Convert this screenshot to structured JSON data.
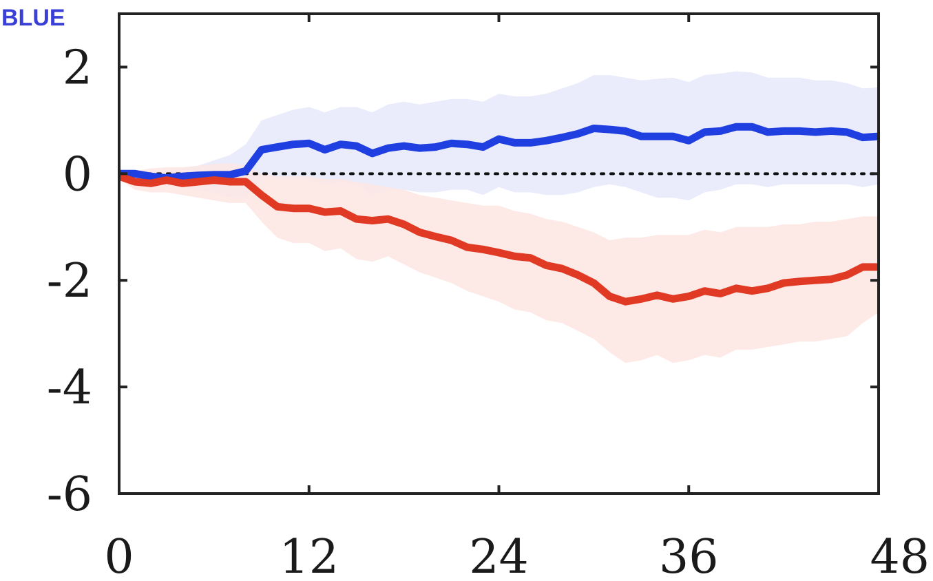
{
  "chart_data": {
    "type": "line",
    "title": "",
    "panel_label": "BLUE",
    "xlabel": "",
    "ylabel": "",
    "xlim": [
      0,
      48
    ],
    "ylim": [
      -6,
      3
    ],
    "xticks": [
      0,
      12,
      24,
      36,
      48
    ],
    "xtick_labels": [
      "0",
      "12",
      "24",
      "36",
      "48"
    ],
    "yticks": [
      2,
      0,
      -2,
      -4,
      -6
    ],
    "ytick_labels": [
      "2",
      "0",
      "-2",
      "-4",
      "-6"
    ],
    "reference_line": {
      "y": 0,
      "style": "dotted",
      "color": "#111111"
    },
    "x": [
      0,
      1,
      2,
      3,
      4,
      5,
      6,
      7,
      8,
      9,
      10,
      11,
      12,
      13,
      14,
      15,
      16,
      17,
      18,
      19,
      20,
      21,
      22,
      23,
      24,
      25,
      26,
      27,
      28,
      29,
      30,
      31,
      32,
      33,
      34,
      35,
      36,
      37,
      38,
      39,
      40,
      41,
      42,
      43,
      44,
      45,
      46,
      47,
      48
    ],
    "series": [
      {
        "name": "blue",
        "color": "#1f3fe0",
        "band_color": "#e6e8fa",
        "values": [
          0.0,
          0.0,
          -0.05,
          -0.08,
          -0.05,
          -0.03,
          -0.02,
          -0.02,
          0.05,
          0.45,
          0.5,
          0.55,
          0.57,
          0.45,
          0.55,
          0.52,
          0.38,
          0.48,
          0.52,
          0.48,
          0.5,
          0.57,
          0.55,
          0.5,
          0.65,
          0.58,
          0.58,
          0.62,
          0.68,
          0.75,
          0.85,
          0.83,
          0.8,
          0.7,
          0.7,
          0.7,
          0.62,
          0.78,
          0.8,
          0.88,
          0.88,
          0.78,
          0.8,
          0.8,
          0.78,
          0.8,
          0.78,
          0.68,
          0.7
        ],
        "upper": [
          0.0,
          0.02,
          0.02,
          0.05,
          0.1,
          0.15,
          0.25,
          0.35,
          0.55,
          1.0,
          1.1,
          1.2,
          1.25,
          1.15,
          1.25,
          1.25,
          1.15,
          1.3,
          1.35,
          1.3,
          1.35,
          1.4,
          1.4,
          1.35,
          1.5,
          1.45,
          1.45,
          1.5,
          1.6,
          1.7,
          1.85,
          1.85,
          1.8,
          1.75,
          1.78,
          1.8,
          1.72,
          1.85,
          1.88,
          1.92,
          1.9,
          1.8,
          1.8,
          1.8,
          1.75,
          1.75,
          1.7,
          1.6,
          1.62
        ],
        "lower": [
          0.0,
          -0.1,
          -0.15,
          -0.2,
          -0.25,
          -0.3,
          -0.35,
          -0.45,
          -0.45,
          -0.1,
          -0.1,
          -0.1,
          -0.1,
          -0.2,
          -0.15,
          -0.2,
          -0.4,
          -0.3,
          -0.3,
          -0.35,
          -0.35,
          -0.3,
          -0.3,
          -0.4,
          -0.25,
          -0.35,
          -0.35,
          -0.4,
          -0.4,
          -0.35,
          -0.25,
          -0.2,
          -0.25,
          -0.35,
          -0.45,
          -0.45,
          -0.5,
          -0.35,
          -0.3,
          -0.2,
          -0.2,
          -0.25,
          -0.2,
          -0.2,
          -0.2,
          -0.2,
          -0.2,
          -0.25,
          -0.2
        ]
      },
      {
        "name": "red",
        "color": "#e03a24",
        "band_color": "#fde6e3",
        "values": [
          -0.05,
          -0.15,
          -0.18,
          -0.12,
          -0.18,
          -0.15,
          -0.12,
          -0.15,
          -0.15,
          -0.4,
          -0.62,
          -0.65,
          -0.65,
          -0.72,
          -0.7,
          -0.85,
          -0.88,
          -0.85,
          -0.95,
          -1.1,
          -1.18,
          -1.25,
          -1.38,
          -1.42,
          -1.48,
          -1.55,
          -1.58,
          -1.72,
          -1.78,
          -1.9,
          -2.05,
          -2.3,
          -2.4,
          -2.35,
          -2.28,
          -2.35,
          -2.3,
          -2.2,
          -2.25,
          -2.15,
          -2.2,
          -2.15,
          -2.05,
          -2.02,
          -2.0,
          -1.98,
          -1.9,
          -1.75,
          -1.75
        ],
        "upper": [
          0.0,
          0.05,
          0.1,
          0.12,
          0.12,
          0.15,
          0.18,
          0.2,
          0.15,
          0.0,
          -0.05,
          -0.05,
          -0.05,
          -0.1,
          -0.1,
          -0.15,
          -0.2,
          -0.25,
          -0.3,
          -0.4,
          -0.45,
          -0.5,
          -0.55,
          -0.6,
          -0.6,
          -0.7,
          -0.75,
          -0.85,
          -0.9,
          -1.0,
          -1.1,
          -1.25,
          -1.2,
          -1.2,
          -1.15,
          -1.15,
          -1.15,
          -1.05,
          -1.1,
          -1.0,
          -1.0,
          -1.0,
          -0.95,
          -0.95,
          -0.9,
          -0.9,
          -0.85,
          -0.8,
          -0.8
        ],
        "lower": [
          -0.1,
          -0.3,
          -0.35,
          -0.35,
          -0.4,
          -0.45,
          -0.5,
          -0.55,
          -0.55,
          -0.9,
          -1.2,
          -1.3,
          -1.3,
          -1.45,
          -1.4,
          -1.6,
          -1.65,
          -1.55,
          -1.7,
          -1.85,
          -1.95,
          -2.05,
          -2.2,
          -2.3,
          -2.4,
          -2.55,
          -2.6,
          -2.75,
          -2.8,
          -2.95,
          -3.1,
          -3.35,
          -3.55,
          -3.5,
          -3.4,
          -3.55,
          -3.5,
          -3.4,
          -3.45,
          -3.3,
          -3.3,
          -3.25,
          -3.2,
          -3.15,
          -3.15,
          -3.1,
          -3.05,
          -2.8,
          -2.6
        ]
      }
    ]
  }
}
